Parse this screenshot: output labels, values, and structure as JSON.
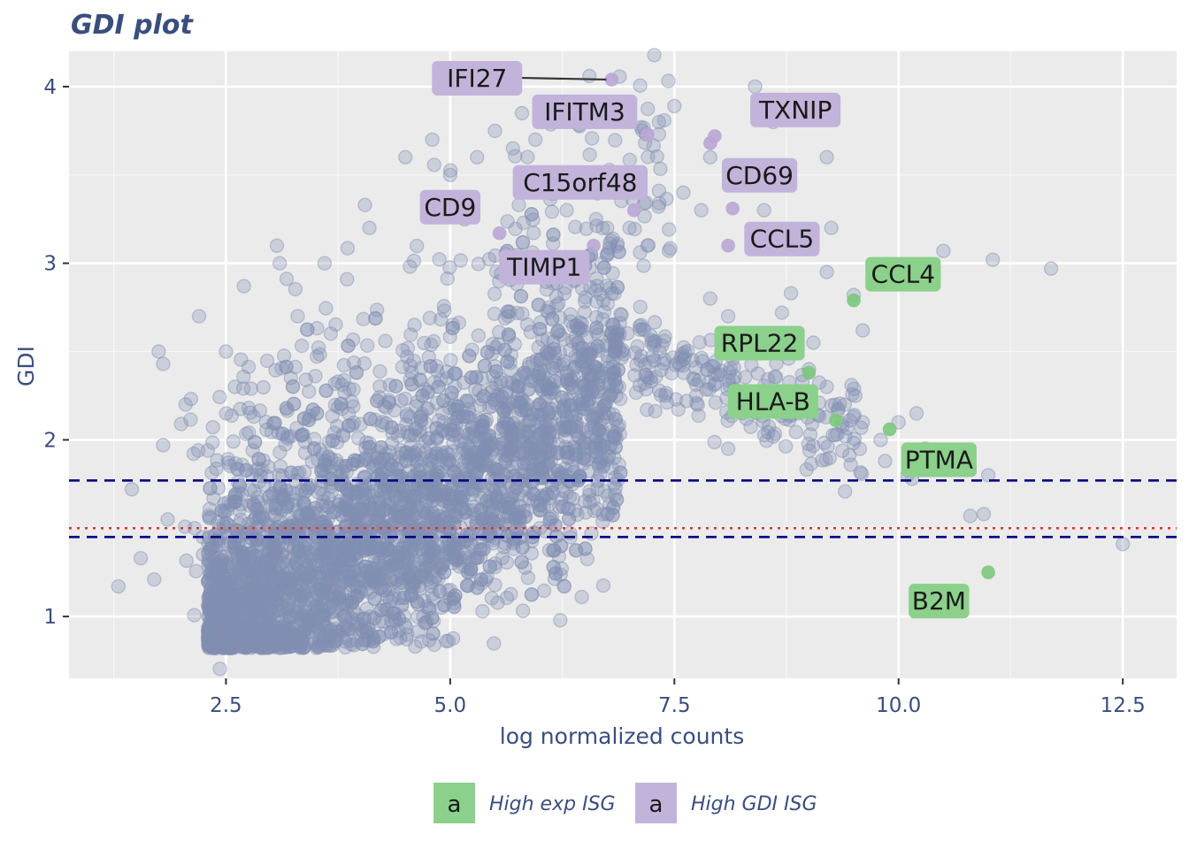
{
  "chart_data": {
    "type": "scatter",
    "title": "GDI plot",
    "xlabel": "log normalized counts",
    "ylabel": "GDI",
    "xlim": [
      0.75,
      13.1
    ],
    "ylim": [
      0.65,
      4.2
    ],
    "x_ticks": [
      2.5,
      5.0,
      7.5,
      10.0,
      12.5
    ],
    "x_tick_labels": [
      "2.5",
      "5.0",
      "7.5",
      "10.0",
      "12.5"
    ],
    "y_ticks": [
      1,
      2,
      3,
      4
    ],
    "y_tick_labels": [
      "1",
      "2",
      "3",
      "4"
    ],
    "grid": true,
    "hlines": [
      {
        "y": 1.77,
        "style": "dashed",
        "color": "#000080"
      },
      {
        "y": 1.5,
        "style": "dotted",
        "color": "#e0302a"
      },
      {
        "y": 1.45,
        "style": "dashed",
        "color": "#000080"
      }
    ],
    "background_points": {
      "color": "#8290b2",
      "description_count": 4000,
      "seed": 1234,
      "outliers": [
        [
          1.3,
          1.17
        ],
        [
          1.45,
          1.72
        ],
        [
          1.55,
          1.33
        ],
        [
          1.7,
          1.21
        ],
        [
          1.75,
          2.5
        ],
        [
          1.8,
          2.43
        ],
        [
          1.8,
          1.97
        ],
        [
          1.85,
          1.55
        ],
        [
          2.0,
          2.09
        ],
        [
          2.05,
          2.2
        ],
        [
          2.2,
          2.7
        ],
        [
          2.15,
          1.5
        ],
        [
          2.5,
          2.5
        ],
        [
          2.6,
          2.3
        ],
        [
          2.7,
          2.87
        ],
        [
          3.1,
          3.0
        ],
        [
          3.3,
          2.7
        ],
        [
          3.6,
          3.0
        ],
        [
          4.05,
          3.33
        ],
        [
          4.1,
          3.2
        ],
        [
          4.5,
          3.6
        ],
        [
          4.8,
          3.7
        ],
        [
          5.0,
          3.5
        ],
        [
          5.3,
          3.6
        ],
        [
          5.5,
          3.75
        ],
        [
          5.7,
          3.65
        ],
        [
          5.8,
          3.85
        ],
        [
          5.95,
          3.7
        ],
        [
          6.3,
          3.3
        ],
        [
          6.5,
          3.5
        ],
        [
          6.75,
          3.2
        ],
        [
          7.0,
          3.2
        ],
        [
          7.2,
          3.1
        ],
        [
          7.5,
          3.89
        ],
        [
          7.6,
          3.4
        ],
        [
          7.8,
          3.3
        ],
        [
          7.9,
          3.6
        ],
        [
          8.4,
          4.0
        ],
        [
          8.6,
          3.8
        ],
        [
          8.5,
          3.3
        ],
        [
          9.2,
          3.6
        ],
        [
          9.25,
          3.2
        ],
        [
          9.2,
          2.95
        ],
        [
          10.5,
          3.07
        ],
        [
          11.05,
          3.02
        ],
        [
          11.7,
          2.97
        ],
        [
          9.5,
          2.82
        ],
        [
          9.6,
          2.62
        ],
        [
          9.05,
          2.55
        ],
        [
          9.2,
          2.3
        ],
        [
          9.4,
          2.2
        ],
        [
          9.6,
          2.1
        ],
        [
          9.8,
          2.0
        ],
        [
          9.85,
          1.88
        ],
        [
          10.0,
          2.1
        ],
        [
          10.2,
          2.15
        ],
        [
          10.3,
          1.95
        ],
        [
          10.1,
          1.8
        ],
        [
          10.15,
          1.78
        ],
        [
          10.8,
          1.57
        ],
        [
          10.95,
          1.58
        ],
        [
          11.0,
          1.8
        ],
        [
          12.5,
          1.41
        ],
        [
          8.1,
          1.95
        ],
        [
          7.4,
          2.25
        ],
        [
          7.7,
          2.45
        ],
        [
          7.9,
          2.8
        ],
        [
          8.1,
          2.7
        ],
        [
          8.5,
          2.6
        ],
        [
          8.7,
          2.72
        ],
        [
          8.8,
          2.83
        ],
        [
          9.0,
          2.4
        ],
        [
          6.7,
          2.03
        ],
        [
          6.5,
          1.9
        ],
        [
          6.3,
          1.7
        ],
        [
          6.0,
          1.5
        ],
        [
          5.5,
          1.3
        ],
        [
          5.0,
          1.1
        ],
        [
          4.9,
          1.05
        ],
        [
          5.0,
          1.15
        ],
        [
          6.0,
          1.6
        ]
      ]
    },
    "series": [
      {
        "name": "High GDI ISG",
        "color": "#b9a6d4",
        "label_fill": "#c2b3da",
        "points": [
          {
            "gene": "IFI27",
            "x": 6.8,
            "y": 4.04
          },
          {
            "gene": "IFITM3",
            "x": 7.2,
            "y": 3.73
          },
          {
            "gene": "TXNIP",
            "x": 7.95,
            "y": 3.72
          },
          {
            "gene": "TXNIP_b",
            "x": 7.9,
            "y": 3.68
          },
          {
            "gene": "CD69",
            "x": 8.15,
            "y": 3.31
          },
          {
            "gene": "C15orf48",
            "x": 7.05,
            "y": 3.3
          },
          {
            "gene": "CD9",
            "x": 5.55,
            "y": 3.17
          },
          {
            "gene": "CCL5",
            "x": 8.1,
            "y": 3.1
          },
          {
            "gene": "TIMP1",
            "x": 6.6,
            "y": 3.1
          }
        ],
        "labels": [
          {
            "text": "IFI27",
            "x": 5.3,
            "y": 4.05
          },
          {
            "text": "IFITM3",
            "x": 6.5,
            "y": 3.86
          },
          {
            "text": "TXNIP",
            "x": 8.85,
            "y": 3.87
          },
          {
            "text": "CD69",
            "x": 8.45,
            "y": 3.5
          },
          {
            "text": "C15orf48",
            "x": 6.45,
            "y": 3.46
          },
          {
            "text": "CD9",
            "x": 5.0,
            "y": 3.32
          },
          {
            "text": "CCL5",
            "x": 8.7,
            "y": 3.14
          },
          {
            "text": "TIMP1",
            "x": 6.05,
            "y": 2.98
          }
        ]
      },
      {
        "name": "High exp ISG",
        "color": "#7bc87b",
        "label_fill": "#8bd08b",
        "points": [
          {
            "gene": "CCL4",
            "x": 9.5,
            "y": 2.79
          },
          {
            "gene": "RPL22",
            "x": 9.0,
            "y": 2.38
          },
          {
            "gene": "HLA-B",
            "x": 9.3,
            "y": 2.11
          },
          {
            "gene": "PTMA",
            "x": 9.9,
            "y": 2.06
          },
          {
            "gene": "B2M",
            "x": 11.0,
            "y": 1.25
          }
        ],
        "labels": [
          {
            "text": "CCL4",
            "x": 10.05,
            "y": 2.94
          },
          {
            "text": "RPL22",
            "x": 8.45,
            "y": 2.55
          },
          {
            "text": "HLA-B",
            "x": 8.6,
            "y": 2.22
          },
          {
            "text": "PTMA",
            "x": 10.45,
            "y": 1.89
          },
          {
            "text": "B2M",
            "x": 10.45,
            "y": 1.09
          }
        ]
      }
    ],
    "legend": {
      "placement": "bottom",
      "items": [
        {
          "key": "a",
          "label": "High exp ISG",
          "fill": "#8bd08b"
        },
        {
          "key": "a",
          "label": "High GDI ISG",
          "fill": "#c2b3da"
        }
      ]
    }
  }
}
